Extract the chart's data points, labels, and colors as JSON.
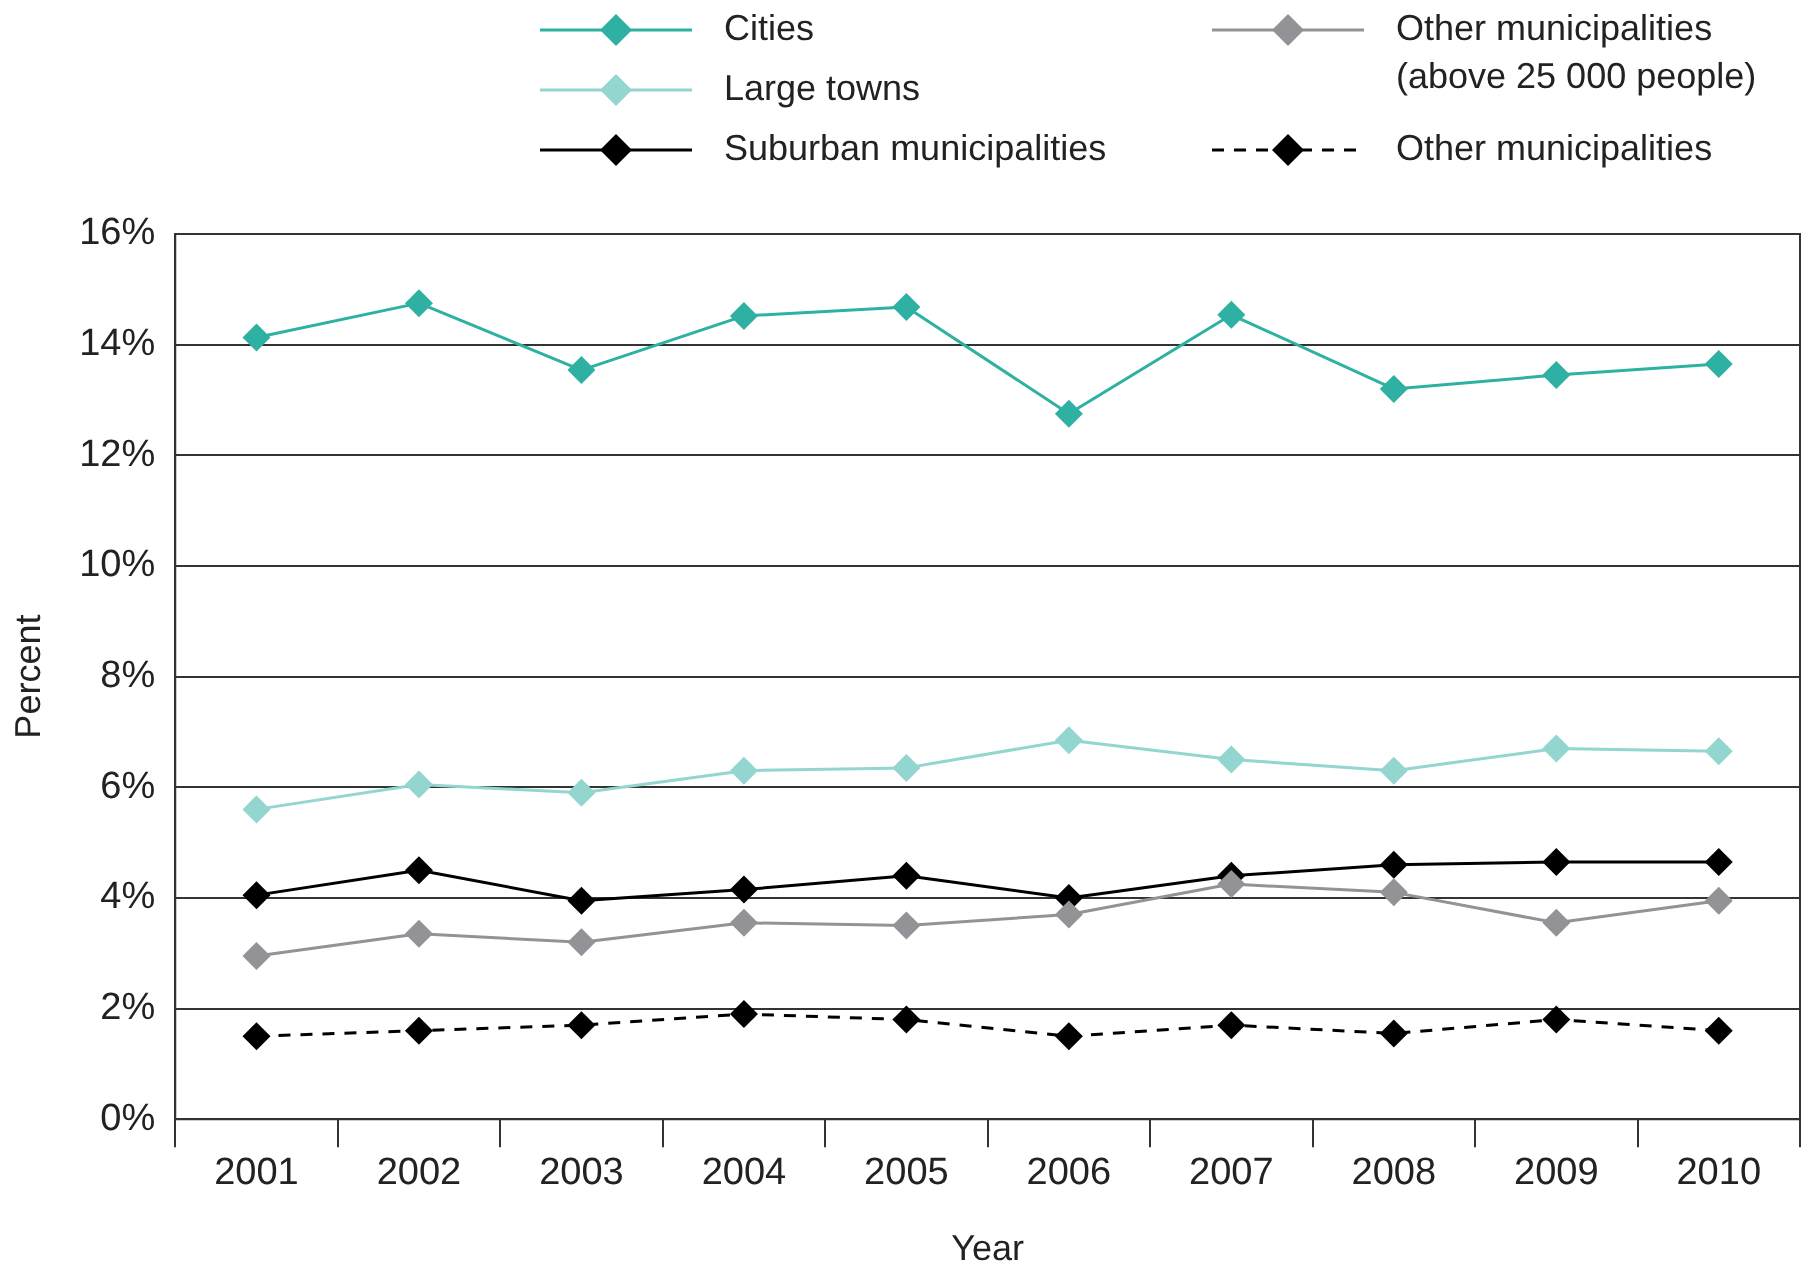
{
  "chart_data": {
    "type": "line",
    "xlabel": "Year",
    "ylabel": "Percent",
    "categories": [
      "2001",
      "2002",
      "2003",
      "2004",
      "2005",
      "2006",
      "2007",
      "2008",
      "2009",
      "2010"
    ],
    "series": [
      {
        "name": "Cities",
        "color": "#2eb1a3",
        "line_style": "solid",
        "values": [
          14.13,
          14.75,
          13.54,
          14.52,
          14.68,
          12.75,
          14.54,
          13.2,
          13.45,
          13.65
        ]
      },
      {
        "name": "Large towns",
        "color": "#93d6cf",
        "line_style": "solid",
        "values": [
          5.6,
          6.05,
          5.9,
          6.3,
          6.35,
          6.85,
          6.5,
          6.3,
          6.7,
          6.65
        ]
      },
      {
        "name": "Suburban municipalities",
        "color": "#000000",
        "line_style": "solid",
        "values": [
          4.05,
          4.5,
          3.95,
          4.15,
          4.4,
          4.0,
          4.4,
          4.6,
          4.65,
          4.65
        ]
      },
      {
        "name": "Other municipalities (above 25 000 people)",
        "color": "#939397",
        "line_style": "solid",
        "values": [
          2.95,
          3.35,
          3.2,
          3.55,
          3.5,
          3.7,
          4.25,
          4.1,
          3.55,
          3.95
        ]
      },
      {
        "name": "Other municipalities",
        "color": "#000000",
        "line_style": "dashed",
        "values": [
          1.5,
          1.6,
          1.7,
          1.9,
          1.8,
          1.5,
          1.7,
          1.55,
          1.8,
          1.6
        ]
      }
    ],
    "ylim": [
      0,
      16
    ],
    "yticks": [
      {
        "value": 0,
        "label": "0%"
      },
      {
        "value": 2,
        "label": "2%"
      },
      {
        "value": 4,
        "label": "4%"
      },
      {
        "value": 6,
        "label": "6%"
      },
      {
        "value": 8,
        "label": "8%"
      },
      {
        "value": 10,
        "label": "10%"
      },
      {
        "value": 12,
        "label": "12%"
      },
      {
        "value": 14,
        "label": "14%"
      },
      {
        "value": 16,
        "label": "16%"
      }
    ],
    "grid": "y",
    "legend": "top",
    "marker": "diamond"
  }
}
